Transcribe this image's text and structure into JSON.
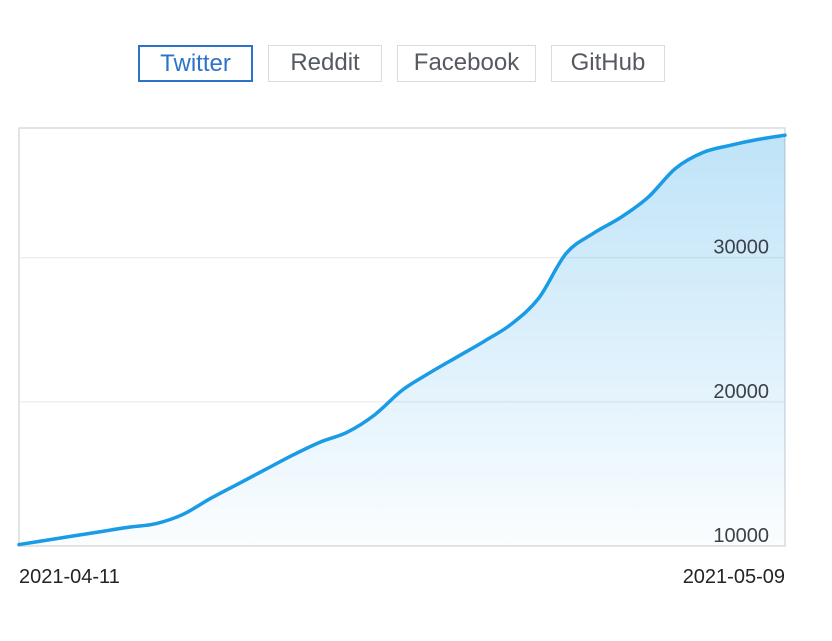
{
  "tabs": [
    {
      "label": "Twitter",
      "active": true
    },
    {
      "label": "Reddit",
      "active": false
    },
    {
      "label": "Facebook",
      "active": false
    },
    {
      "label": "GitHub",
      "active": false
    }
  ],
  "colors": {
    "line": "#1a9be6",
    "accent": "#2d74c8",
    "grid": "#e6e8eb",
    "border": "#d8dbe0"
  },
  "chart_data": {
    "type": "area",
    "x_start": "2021-04-11",
    "x_end": "2021-05-09",
    "x_tick_labels": [
      "2021-04-11",
      "2021-05-09"
    ],
    "ylim": [
      10000,
      39000
    ],
    "y_ticks": [
      10000,
      20000,
      30000
    ],
    "y_tick_labels": [
      "10000",
      "20000",
      "30000"
    ],
    "grid": true,
    "series": [
      {
        "x": [
          "2021-04-11",
          "2021-04-12",
          "2021-04-13",
          "2021-04-14",
          "2021-04-15",
          "2021-04-16",
          "2021-04-17",
          "2021-04-18",
          "2021-04-19",
          "2021-04-20",
          "2021-04-21",
          "2021-04-22",
          "2021-04-23",
          "2021-04-24",
          "2021-04-25",
          "2021-04-26",
          "2021-04-27",
          "2021-04-28",
          "2021-04-29",
          "2021-04-30",
          "2021-05-01",
          "2021-05-02",
          "2021-05-03",
          "2021-05-04",
          "2021-05-05",
          "2021-05-06",
          "2021-05-07",
          "2021-05-08",
          "2021-05-09"
        ],
        "values": [
          10100,
          10400,
          10700,
          11000,
          11300,
          11550,
          12200,
          13300,
          14300,
          15300,
          16300,
          17200,
          17900,
          19100,
          20800,
          22000,
          23100,
          24200,
          25400,
          27200,
          30300,
          31700,
          32800,
          34200,
          36200,
          37300,
          37800,
          38200,
          38500
        ]
      }
    ]
  }
}
